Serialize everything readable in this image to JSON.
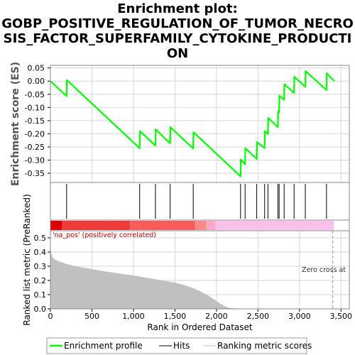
{
  "title_lines": [
    "Enrichment plot:",
    "GOBP_POSITIVE_REGULATION_OF_TUMOR_NECRO",
    "SIS_FACTOR_SUPERFAMILY_CYTOKINE_PRODUCTI",
    "ON"
  ],
  "colors": {
    "es_line": "#00ff00",
    "hits": "#000000",
    "metric_fill": "#c0c0c0",
    "grid": "#d6d6d6",
    "annotation_red": "#cc0000",
    "zero_line": "#999999"
  },
  "chart_data": [
    {
      "type": "line",
      "name": "enrichment-profile",
      "ylabel": "Enrichment score (ES)",
      "xlim": [
        0,
        3600
      ],
      "ylim": [
        -0.385,
        0.06
      ],
      "yticks": [
        0.05,
        0.0,
        -0.05,
        -0.1,
        -0.15,
        -0.2,
        -0.25,
        -0.3,
        -0.35
      ],
      "ytick_labels": [
        "0.05",
        "0.00",
        "-0.05",
        "-0.10",
        "-0.15",
        "-0.20",
        "-0.25",
        "-0.30",
        "-0.35"
      ],
      "grid": true,
      "x": [
        0,
        195,
        198,
        1075,
        1078,
        1265,
        1268,
        1442,
        1445,
        1720,
        1723,
        2290,
        2293,
        2345,
        2348,
        2485,
        2488,
        2580,
        2583,
        2620,
        2623,
        2740,
        2743,
        2755,
        2758,
        2815,
        2818,
        2935,
        2938,
        3070,
        3073,
        3325,
        3328,
        3420
      ],
      "y": [
        0.0,
        -0.057,
        0.004,
        -0.255,
        -0.19,
        -0.245,
        -0.183,
        -0.237,
        -0.175,
        -0.256,
        -0.194,
        -0.362,
        -0.298,
        -0.316,
        -0.255,
        -0.296,
        -0.232,
        -0.254,
        -0.19,
        -0.201,
        -0.14,
        -0.175,
        -0.115,
        -0.118,
        -0.055,
        -0.071,
        -0.012,
        -0.045,
        0.017,
        -0.022,
        0.038,
        -0.034,
        0.03,
        0.0
      ]
    },
    {
      "type": "hits",
      "name": "hits",
      "x": [
        195,
        1075,
        1265,
        1442,
        1720,
        2290,
        2345,
        2485,
        2580,
        2620,
        2740,
        2755,
        2815,
        2935,
        3070,
        3325
      ]
    },
    {
      "type": "heatmap",
      "name": "ranked-list-colorbar",
      "segments": [
        {
          "from": 0,
          "to": 140,
          "color": "#dd0000"
        },
        {
          "from": 140,
          "to": 960,
          "color": "#ee3b3b"
        },
        {
          "from": 960,
          "to": 1740,
          "color": "#f75c5c"
        },
        {
          "from": 1740,
          "to": 1880,
          "color": "#f88a8a"
        },
        {
          "from": 1880,
          "to": 1990,
          "color": "#f7a8c8"
        },
        {
          "from": 1990,
          "to": 3415,
          "color": "#f9c1ea"
        }
      ]
    },
    {
      "type": "area",
      "name": "ranked-list-metric",
      "xlabel": "Rank in Ordered Dataset",
      "ylabel": "Ranked list metric (PreRanked)",
      "xlim": [
        0,
        3600
      ],
      "ylim": [
        0,
        0.55
      ],
      "xticks": [
        0,
        500,
        1000,
        1500,
        2000,
        2500,
        3000,
        3500
      ],
      "xtick_labels": [
        "0",
        "500",
        "1,000",
        "1,500",
        "2,000",
        "2,500",
        "3,000",
        "3,500"
      ],
      "yticks": [
        0.0,
        0.1,
        0.2,
        0.3,
        0.4,
        0.5
      ],
      "ytick_labels": [
        "0.0",
        "0.1",
        "0.2",
        "0.3",
        "0.4",
        "0.5"
      ],
      "grid": true,
      "x": [
        0,
        10,
        30,
        60,
        100,
        200,
        300,
        500,
        700,
        1000,
        1200,
        1400,
        1500,
        1600,
        1700,
        1800,
        1900,
        2000,
        2050,
        2100,
        2150,
        2200,
        2300,
        2500,
        3000,
        3415
      ],
      "y": [
        0.45,
        0.39,
        0.36,
        0.345,
        0.335,
        0.315,
        0.3,
        0.28,
        0.26,
        0.235,
        0.215,
        0.195,
        0.185,
        0.17,
        0.15,
        0.125,
        0.095,
        0.055,
        0.035,
        0.018,
        0.008,
        0.004,
        0.002,
        0.001,
        0.0005,
        0.0
      ],
      "annotation": "'na_pos' (positively correlated)",
      "zero_cross_label": "Zero cross at",
      "zero_cross_x": 3400
    }
  ],
  "legend": {
    "placement": "bottom",
    "items": [
      {
        "label": "Enrichment profile",
        "kind": "line",
        "color": "#00ff00"
      },
      {
        "label": "Hits",
        "kind": "line",
        "color": "#000000"
      },
      {
        "label": "Ranking metric scores",
        "kind": "line",
        "color": "#c0c0c0"
      }
    ]
  }
}
